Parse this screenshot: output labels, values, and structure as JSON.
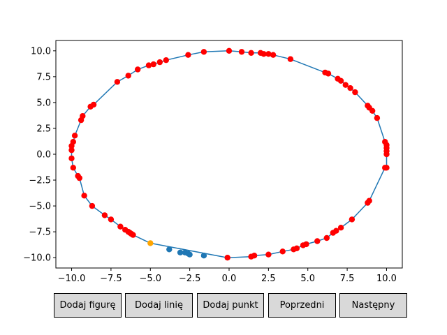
{
  "chart_data": {
    "type": "scatter",
    "title": "",
    "xlabel": "",
    "ylabel": "",
    "xlim": [
      -11.0,
      11.0
    ],
    "ylim": [
      -11.0,
      11.0
    ],
    "x_ticks": [
      -10.0,
      -7.5,
      -5.0,
      -2.5,
      0.0,
      2.5,
      5.0,
      7.5,
      10.0
    ],
    "y_ticks": [
      -10.0,
      -7.5,
      -5.0,
      -2.5,
      0.0,
      2.5,
      5.0,
      7.5,
      10.0
    ],
    "x_tick_labels": [
      "−10.0",
      "−7.5",
      "−5.0",
      "−2.5",
      "0.0",
      "2.5",
      "5.0",
      "7.5",
      "10.0"
    ],
    "y_tick_labels": [
      "−10.0",
      "−7.5",
      "−5.0",
      "−2.5",
      "0.0",
      "2.5",
      "5.0",
      "7.5",
      "10.0"
    ],
    "grid": false,
    "legend": "none",
    "colors": {
      "line": "#1f77b4",
      "points": "#ff0000",
      "highlight": "#ffa500",
      "remaining": "#1f77b4"
    },
    "series": [
      {
        "role": "polyline",
        "x": [
          0.0,
          0.8,
          1.4,
          2.0,
          2.2,
          2.5,
          2.8,
          3.9,
          6.1,
          6.3,
          6.9,
          7.1,
          7.4,
          7.7,
          8.0,
          8.8,
          8.9,
          9.1,
          9.4,
          9.9,
          10.0,
          10.0,
          10.0,
          10.0,
          10.0,
          9.9,
          8.9,
          8.8,
          7.8,
          7.1,
          6.8,
          6.6,
          6.2,
          5.6,
          4.9,
          4.7,
          4.3,
          4.1,
          3.4,
          2.5,
          1.6,
          1.4,
          -0.1,
          -5.0
        ],
        "y": [
          10.0,
          9.9,
          9.8,
          9.8,
          9.7,
          9.7,
          9.6,
          9.2,
          7.9,
          7.8,
          7.3,
          7.1,
          6.7,
          6.4,
          6.0,
          4.7,
          4.5,
          4.2,
          3.5,
          1.2,
          0.9,
          0.6,
          0.3,
          0.0,
          -1.3,
          -1.3,
          -4.5,
          -4.7,
          -6.3,
          -7.1,
          -7.4,
          -7.6,
          -8.1,
          -8.4,
          -8.7,
          -8.8,
          -9.1,
          -9.2,
          -9.4,
          -9.7,
          -9.8,
          -9.9,
          -10.0,
          -8.6
        ]
      },
      {
        "role": "polyline",
        "x": [
          0.0,
          -1.6,
          -2.6,
          -4.0,
          -4.4,
          -4.8,
          -5.1,
          -5.8,
          -6.4,
          -7.1,
          -8.6,
          -8.8,
          -9.3,
          -9.4,
          -9.8,
          -9.9,
          -10.0,
          -10.0,
          -10.0,
          -9.9,
          -9.6,
          -9.5,
          -9.2,
          -8.7,
          -7.9,
          -7.5,
          -6.9,
          -6.6,
          -6.4,
          -6.3,
          -6.2,
          -6.1,
          -5.0
        ],
        "y": [
          10.0,
          9.9,
          9.6,
          9.1,
          8.9,
          8.7,
          8.6,
          8.2,
          7.6,
          7.0,
          4.8,
          4.6,
          3.7,
          3.3,
          1.8,
          1.2,
          0.8,
          0.4,
          -0.4,
          -1.3,
          -2.1,
          -2.3,
          -4.0,
          -5.0,
          -5.9,
          -6.3,
          -7.0,
          -7.3,
          -7.5,
          -7.6,
          -7.7,
          -7.8,
          -8.6
        ]
      },
      {
        "role": "points",
        "x": [
          0.0,
          0.8,
          1.4,
          2.0,
          2.2,
          2.5,
          2.8,
          3.9,
          6.1,
          6.3,
          6.9,
          7.1,
          7.4,
          7.7,
          8.0,
          8.8,
          8.9,
          9.1,
          9.4,
          9.9,
          10.0,
          10.0,
          10.0,
          10.0,
          10.0,
          9.9,
          8.9,
          8.8,
          7.8,
          7.1,
          6.8,
          6.6,
          6.2,
          5.6,
          4.9,
          4.7,
          4.3,
          4.1,
          3.4,
          2.5,
          1.6,
          1.4,
          -0.1,
          -1.6,
          -2.6,
          -4.0,
          -4.4,
          -4.8,
          -5.1,
          -5.8,
          -6.4,
          -7.1,
          -8.6,
          -8.8,
          -9.3,
          -9.4,
          -9.8,
          -9.9,
          -10.0,
          -10.0,
          -10.0,
          -9.9,
          -9.6,
          -9.5,
          -9.2,
          -8.7,
          -7.9,
          -7.5,
          -6.9,
          -6.6,
          -6.4,
          -6.3,
          -6.2,
          -6.1
        ],
        "y": [
          10.0,
          9.9,
          9.8,
          9.8,
          9.7,
          9.7,
          9.6,
          9.2,
          7.9,
          7.8,
          7.3,
          7.1,
          6.7,
          6.4,
          6.0,
          4.7,
          4.5,
          4.2,
          3.5,
          1.2,
          0.9,
          0.6,
          0.3,
          0.0,
          -1.3,
          -1.3,
          -4.5,
          -4.7,
          -6.3,
          -7.1,
          -7.4,
          -7.6,
          -8.1,
          -8.4,
          -8.7,
          -8.8,
          -9.1,
          -9.2,
          -9.4,
          -9.7,
          -9.8,
          -9.9,
          -10.0,
          9.9,
          9.6,
          9.1,
          8.9,
          8.7,
          8.6,
          8.2,
          7.6,
          7.0,
          4.8,
          4.6,
          3.7,
          3.3,
          1.8,
          1.2,
          0.8,
          0.4,
          -0.4,
          -1.3,
          -2.1,
          -2.3,
          -4.0,
          -5.0,
          -5.9,
          -6.3,
          -7.0,
          -7.3,
          -7.5,
          -7.6,
          -7.7,
          -7.8
        ]
      },
      {
        "role": "highlight",
        "x": [
          -5.0
        ],
        "y": [
          -8.6
        ]
      },
      {
        "role": "remaining",
        "x": [
          -3.8,
          -3.1,
          -2.8,
          -2.6,
          -2.5,
          -1.6
        ],
        "y": [
          -9.2,
          -9.5,
          -9.5,
          -9.6,
          -9.7,
          -9.8
        ]
      }
    ]
  },
  "buttons": {
    "add_figure": "Dodaj figurę",
    "add_line": "Dodaj linię",
    "add_point": "Dodaj punkt",
    "previous": "Poprzedni",
    "next": "Następny"
  }
}
